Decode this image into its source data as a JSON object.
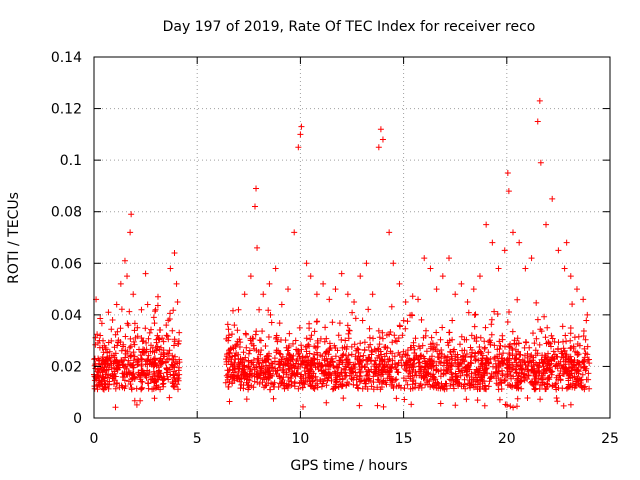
{
  "chart_data": {
    "type": "scatter",
    "title": "Day 197 of 2019, Rate Of TEC Index for receiver reco",
    "xlabel": "GPS time / hours",
    "ylabel": "ROTI / TECUs",
    "xlim": [
      0,
      25
    ],
    "ylim": [
      0,
      0.14
    ],
    "xticks": [
      0,
      5,
      10,
      15,
      20,
      25
    ],
    "xtick_labels": [
      "0",
      "5",
      "10",
      "15",
      "20",
      "25"
    ],
    "yticks": [
      0,
      0.02,
      0.04,
      0.06,
      0.08,
      0.1,
      0.12,
      0.14
    ],
    "ytick_labels": [
      "0",
      "0.02",
      "0.04",
      "0.06",
      "0.08",
      "0.1",
      "0.12",
      "0.14"
    ],
    "grid": true,
    "marker": "+",
    "color": "#ff0000",
    "series": [
      {
        "name": "ROTI",
        "x": [
          0.1,
          0.3,
          0.5,
          0.7,
          0.9,
          1.1,
          1.3,
          1.5,
          1.6,
          1.75,
          1.8,
          1.9,
          2.1,
          2.3,
          2.5,
          2.6,
          2.7,
          2.9,
          3.1,
          3.3,
          3.5,
          3.7,
          3.9,
          4.0,
          4.05,
          6.5,
          6.8,
          7.0,
          7.3,
          7.6,
          7.8,
          7.85,
          7.9,
          8.2,
          8.5,
          8.8,
          9.1,
          9.4,
          9.7,
          9.9,
          10.0,
          10.05,
          10.3,
          10.5,
          10.8,
          11.1,
          11.4,
          11.7,
          12.0,
          12.3,
          12.6,
          12.9,
          13.2,
          13.5,
          13.8,
          13.9,
          14.0,
          14.3,
          14.5,
          14.8,
          15.1,
          15.4,
          15.7,
          16.0,
          16.3,
          16.6,
          16.9,
          17.2,
          17.5,
          17.8,
          18.1,
          18.4,
          18.7,
          19.0,
          19.3,
          19.6,
          19.9,
          20.05,
          20.1,
          20.3,
          20.6,
          20.9,
          21.2,
          21.5,
          21.6,
          21.65,
          21.9,
          22.2,
          22.5,
          22.8,
          22.9,
          23.1,
          23.4,
          23.7,
          23.9
        ],
        "y": [
          0.046,
          0.032,
          0.028,
          0.041,
          0.038,
          0.044,
          0.052,
          0.061,
          0.055,
          0.072,
          0.079,
          0.048,
          0.035,
          0.042,
          0.056,
          0.044,
          0.033,
          0.039,
          0.047,
          0.031,
          0.036,
          0.058,
          0.064,
          0.052,
          0.045,
          0.03,
          0.036,
          0.042,
          0.048,
          0.055,
          0.082,
          0.089,
          0.066,
          0.048,
          0.052,
          0.058,
          0.044,
          0.05,
          0.072,
          0.105,
          0.11,
          0.113,
          0.06,
          0.055,
          0.048,
          0.052,
          0.046,
          0.05,
          0.056,
          0.048,
          0.045,
          0.055,
          0.06,
          0.048,
          0.105,
          0.112,
          0.108,
          0.072,
          0.06,
          0.052,
          0.045,
          0.04,
          0.046,
          0.062,
          0.058,
          0.05,
          0.055,
          0.062,
          0.048,
          0.052,
          0.045,
          0.05,
          0.055,
          0.075,
          0.068,
          0.058,
          0.065,
          0.095,
          0.088,
          0.072,
          0.068,
          0.058,
          0.062,
          0.115,
          0.123,
          0.099,
          0.075,
          0.085,
          0.065,
          0.058,
          0.068,
          0.055,
          0.05,
          0.046,
          0.04
        ]
      }
    ]
  }
}
